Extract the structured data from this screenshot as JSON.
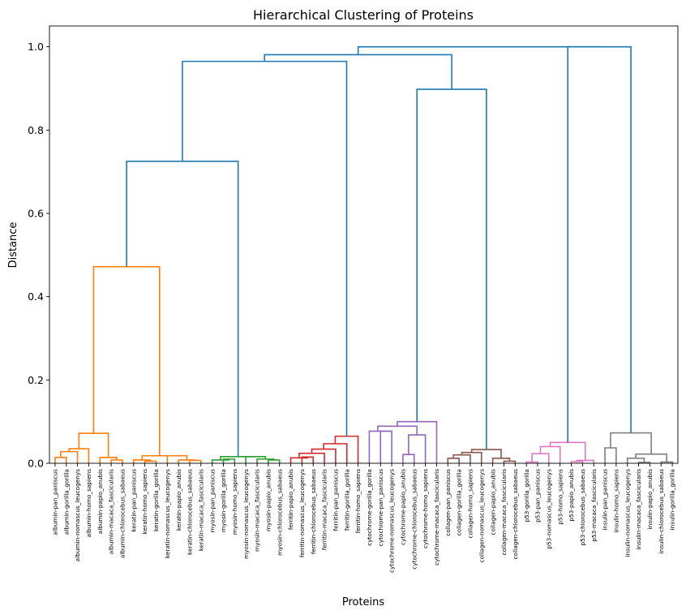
{
  "chart_data": {
    "type": "dendrogram",
    "title": "Hierarchical Clustering of Proteins",
    "xlabel": "Proteins",
    "ylabel": "Distance",
    "ylim": [
      0,
      1.05
    ],
    "yticks": [
      "0.0",
      "0.2",
      "0.4",
      "0.6",
      "0.8",
      "1.0"
    ],
    "colors": {
      "albumin-keratin": "#ff7f0e",
      "myosin": "#2ca02c",
      "ferritin": "#d62728",
      "cytochrome": "#9467bd",
      "collagen": "#8c564b",
      "p53": "#e377c2",
      "insulin": "#7f7f7f",
      "above": "#1f77b4"
    },
    "leaves": [
      "albumin-pan_paniscus",
      "albumin-gorilla_gorilla",
      "albumin-nomascus_leucogenys",
      "albumin-homo_sapiens",
      "albumin-papio_anubis",
      "albumin-macaca_fascicularis",
      "albumin-chlorocebus_sabaeus",
      "keratin-pan_paniscus",
      "keratin-homo_sapiens",
      "keratin-gorilla_gorilla",
      "keratin-nomascus_leucogenys",
      "keratin-papio_anubis",
      "keratin-chlorocebus_sabaeus",
      "keratin-macaca_fascicularis",
      "myosin-pan_paniscus",
      "myosin-gorilla_gorilla",
      "myosin-homo_sapiens",
      "myosin-nomascus_leucogenys",
      "myosin-macaca_fascicularis",
      "myosin-papio_anubis",
      "myosin-chlorocebus_sabaeus",
      "ferritin-papio_anubis",
      "ferritin-nomascus_leucogenys",
      "ferritin-chlorocebus_sabaeus",
      "ferritin-macaca_fascicularis",
      "ferritin-pan_paniscus",
      "ferritin-gorilla_gorilla",
      "ferritin-homo_sapiens",
      "cytochrome-gorilla_gorilla",
      "cytochrome-pan_paniscus",
      "cytochrome-nomascus_leucogenys",
      "cytochrome-papio_anubis",
      "cytochrome-chlorocebus_sabaeus",
      "cytochrome-homo_sapiens",
      "cytochrome-macaca_fascicularis",
      "collagen-pan_paniscus",
      "collagen-gorilla_gorilla",
      "collagen-homo_sapiens",
      "collagen-nomascus_leucogenys",
      "collagen-papio_anubis",
      "collagen-macaca_fascicularis",
      "collagen-chlorocebus_sabaeus",
      "p53-gorilla_gorilla",
      "p53-pan_paniscus",
      "p53-nomascus_leucogenys",
      "p53-homo_sapiens",
      "p53-papio_anubis",
      "p53-chlorocebus_sabaeus",
      "p53-macaca_fascicularis",
      "insulin-pan_paniscus",
      "insulin-homo_sapiens",
      "insulin-nomascus_leucogenys",
      "insulin-macaca_fascicularis",
      "insulin-papio_anubis",
      "insulin-chlorocebus_sabaeus",
      "insulin-gorilla_gorilla"
    ],
    "links": [
      {
        "from": [
          "albumin-pan_paniscus",
          "albumin-gorilla_gorilla"
        ],
        "distance": 0.014,
        "color": "albumin-keratin"
      },
      {
        "from": [
          "albumin-pan_paniscus",
          "albumin-gorilla_gorilla",
          "albumin-nomascus_leucogenys"
        ],
        "distance": 0.028,
        "color": "albumin-keratin"
      },
      {
        "from": [
          "albumin-pan_paniscus",
          "albumin-gorilla_gorilla",
          "albumin-nomascus_leucogenys",
          "albumin-homo_sapiens"
        ],
        "distance": 0.035,
        "color": "albumin-keratin"
      },
      {
        "from": [
          "albumin-macaca_fascicularis",
          "albumin-chlorocebus_sabaeus"
        ],
        "distance": 0.008,
        "color": "albumin-keratin"
      },
      {
        "from": [
          "albumin-papio_anubis",
          "albumin-macaca_fascicularis",
          "albumin-chlorocebus_sabaeus"
        ],
        "distance": 0.014,
        "color": "albumin-keratin"
      },
      {
        "from": [
          "albumin (great apes)",
          "albumin (old-world monkeys)"
        ],
        "distance": 0.072,
        "color": "albumin-keratin"
      },
      {
        "from": [
          "keratin-homo_sapiens",
          "keratin-gorilla_gorilla"
        ],
        "distance": 0.005,
        "color": "albumin-keratin"
      },
      {
        "from": [
          "keratin-pan_paniscus",
          "keratin-homo_sapiens",
          "keratin-gorilla_gorilla"
        ],
        "distance": 0.008,
        "color": "albumin-keratin"
      },
      {
        "from": [
          "keratin-pan_paniscus",
          "keratin-homo_sapiens",
          "keratin-gorilla_gorilla",
          "keratin-nomascus_leucogenys"
        ],
        "distance": 0.012,
        "color": "albumin-keratin"
      },
      {
        "from": [
          "keratin-chlorocebus_sabaeus",
          "keratin-macaca_fascicularis"
        ],
        "distance": 0.007,
        "color": "albumin-keratin"
      },
      {
        "from": [
          "keratin-papio_anubis",
          "keratin-chlorocebus_sabaeus",
          "keratin-macaca_fascicularis"
        ],
        "distance": 0.008,
        "color": "albumin-keratin"
      },
      {
        "from": [
          "keratin (apes)",
          "keratin (monkeys)"
        ],
        "distance": 0.018,
        "color": "albumin-keratin"
      },
      {
        "from": [
          "albumin",
          "keratin"
        ],
        "distance": 0.472,
        "color": "albumin-keratin"
      },
      {
        "from": [
          "myosin-gorilla_gorilla",
          "myosin-homo_sapiens"
        ],
        "distance": 0.01,
        "color": "myosin"
      },
      {
        "from": [
          "myosin-pan_paniscus",
          "myosin-gorilla_gorilla",
          "myosin-homo_sapiens"
        ],
        "distance": 0.008,
        "color": "myosin"
      },
      {
        "from": [
          "myosin-pan_paniscus",
          "myosin-gorilla_gorilla",
          "myosin-homo_sapiens",
          "myosin-nomascus_leucogenys"
        ],
        "distance": 0.013,
        "color": "myosin"
      },
      {
        "from": [
          "myosin-papio_anubis",
          "myosin-chlorocebus_sabaeus"
        ],
        "distance": 0.008,
        "color": "myosin"
      },
      {
        "from": [
          "myosin-macaca_fascicularis",
          "myosin-papio_anubis",
          "myosin-chlorocebus_sabaeus"
        ],
        "distance": 0.01,
        "color": "myosin"
      },
      {
        "from": [
          "myosin (apes)",
          "myosin (monkeys)"
        ],
        "distance": 0.016,
        "color": "myosin"
      },
      {
        "from": [
          "albumin+keratin",
          "myosin"
        ],
        "distance": 0.725,
        "color": "above"
      },
      {
        "from": [
          "ferritin-nomascus_leucogenys",
          "ferritin-chlorocebus_sabaeus"
        ],
        "distance": 0.015,
        "color": "ferritin"
      },
      {
        "from": [
          "ferritin-papio_anubis",
          "ferritin-nomascus_leucogenys",
          "ferritin-chlorocebus_sabaeus"
        ],
        "distance": 0.013,
        "color": "ferritin"
      },
      {
        "from": [
          "ferritin-papio_anubis",
          "ferritin-nomascus_leucogenys",
          "ferritin-chlorocebus_sabaeus",
          "ferritin-macaca_fascicularis"
        ],
        "distance": 0.024,
        "color": "ferritin"
      },
      {
        "from": [
          "...",
          "ferritin-pan_paniscus"
        ],
        "distance": 0.034,
        "color": "ferritin"
      },
      {
        "from": [
          "...",
          "ferritin-gorilla_gorilla"
        ],
        "distance": 0.047,
        "color": "ferritin"
      },
      {
        "from": [
          "...",
          "ferritin-homo_sapiens"
        ],
        "distance": 0.065,
        "color": "ferritin"
      },
      {
        "from": [
          "albumin+keratin+myosin",
          "ferritin"
        ],
        "distance": 0.965,
        "color": "above"
      },
      {
        "from": [
          "cytochrome-gorilla_gorilla",
          "cytochrome-pan_paniscus"
        ],
        "distance": 0.04,
        "color": "cytochrome"
      },
      {
        "from": [
          "cytochrome-pan_paniscus",
          "cytochrome-nomascus_leucogenys"
        ],
        "distance": 0.077,
        "color": "cytochrome"
      },
      {
        "from": [
          "cytochrome-papio_anubis",
          "cytochrome-chlorocebus_sabaeus"
        ],
        "distance": 0.021,
        "color": "cytochrome"
      },
      {
        "from": [
          "cytochrome-chlorocebus_sabaeus",
          "cytochrome-homo_sapiens"
        ],
        "distance": 0.068,
        "color": "cytochrome"
      },
      {
        "from": [
          "cytochrome (group 1)",
          "cytochrome (group 2)"
        ],
        "distance": 0.089,
        "color": "cytochrome"
      },
      {
        "from": [
          "...",
          "cytochrome-macaca_fascicularis"
        ],
        "distance": 0.1,
        "color": "cytochrome"
      },
      {
        "from": [
          "collagen-pan_paniscus",
          "collagen-gorilla_gorilla"
        ],
        "distance": 0.012,
        "color": "collagen"
      },
      {
        "from": [
          "collagen-pan_paniscus",
          "collagen-gorilla_gorilla",
          "collagen-homo_sapiens"
        ],
        "distance": 0.02,
        "color": "collagen"
      },
      {
        "from": [
          "...",
          "collagen-nomascus_leucogenys"
        ],
        "distance": 0.026,
        "color": "collagen"
      },
      {
        "from": [
          "collagen-papio_anubis",
          "collagen-macaca_fascicularis"
        ],
        "distance": 0.005,
        "color": "collagen"
      },
      {
        "from": [
          "...",
          "collagen-chlorocebus_sabaeus"
        ],
        "distance": 0.012,
        "color": "collagen"
      },
      {
        "from": [
          "collagen (apes)",
          "collagen (monkeys)"
        ],
        "distance": 0.033,
        "color": "collagen"
      },
      {
        "from": [
          "cytochrome",
          "collagen"
        ],
        "distance": 0.898,
        "color": "above"
      },
      {
        "from": [
          "albumin+keratin+myosin+ferritin",
          "cytochrome+collagen"
        ],
        "distance": 0.981,
        "color": "above"
      },
      {
        "from": [
          "p53-gorilla_gorilla",
          "p53-pan_paniscus"
        ],
        "distance": 0.003,
        "color": "p53"
      },
      {
        "from": [
          "...",
          "p53-nomascus_leucogenys"
        ],
        "distance": 0.023,
        "color": "p53"
      },
      {
        "from": [
          "...",
          "p53-homo_sapiens"
        ],
        "distance": 0.04,
        "color": "p53"
      },
      {
        "from": [
          "p53-papio_anubis",
          "p53-chlorocebus_sabaeus"
        ],
        "distance": 0.004,
        "color": "p53"
      },
      {
        "from": [
          "...",
          "p53-macaca_fascicularis"
        ],
        "distance": 0.007,
        "color": "p53"
      },
      {
        "from": [
          "p53 (apes)",
          "p53 (monkeys)"
        ],
        "distance": 0.05,
        "color": "p53"
      },
      {
        "from": [
          "insulin-pan_paniscus",
          "insulin-homo_sapiens"
        ],
        "distance": 0.037,
        "color": "insulin"
      },
      {
        "from": [
          "insulin-macaca_fascicularis",
          "insulin-papio_anubis"
        ],
        "distance": 0.002,
        "color": "insulin"
      },
      {
        "from": [
          "insulin-nomascus_leucogenys",
          "insulin-macaca_fascicularis",
          "insulin-papio_anubis"
        ],
        "distance": 0.012,
        "color": "insulin"
      },
      {
        "from": [
          "insulin-chlorocebus_sabaeus",
          "insulin-gorilla_gorilla"
        ],
        "distance": 0.003,
        "color": "insulin"
      },
      {
        "from": [
          "...",
          "..."
        ],
        "distance": 0.022,
        "color": "insulin"
      },
      {
        "from": [
          "insulin (group 1)",
          "insulin (group 2)"
        ],
        "distance": 0.073,
        "color": "insulin"
      },
      {
        "from": [
          "p53",
          "insulin"
        ],
        "distance": 1.0,
        "color": "above"
      },
      {
        "from": [
          "albumin ... collagen",
          "p53+insulin"
        ],
        "distance": 1.0,
        "color": "above"
      }
    ]
  }
}
